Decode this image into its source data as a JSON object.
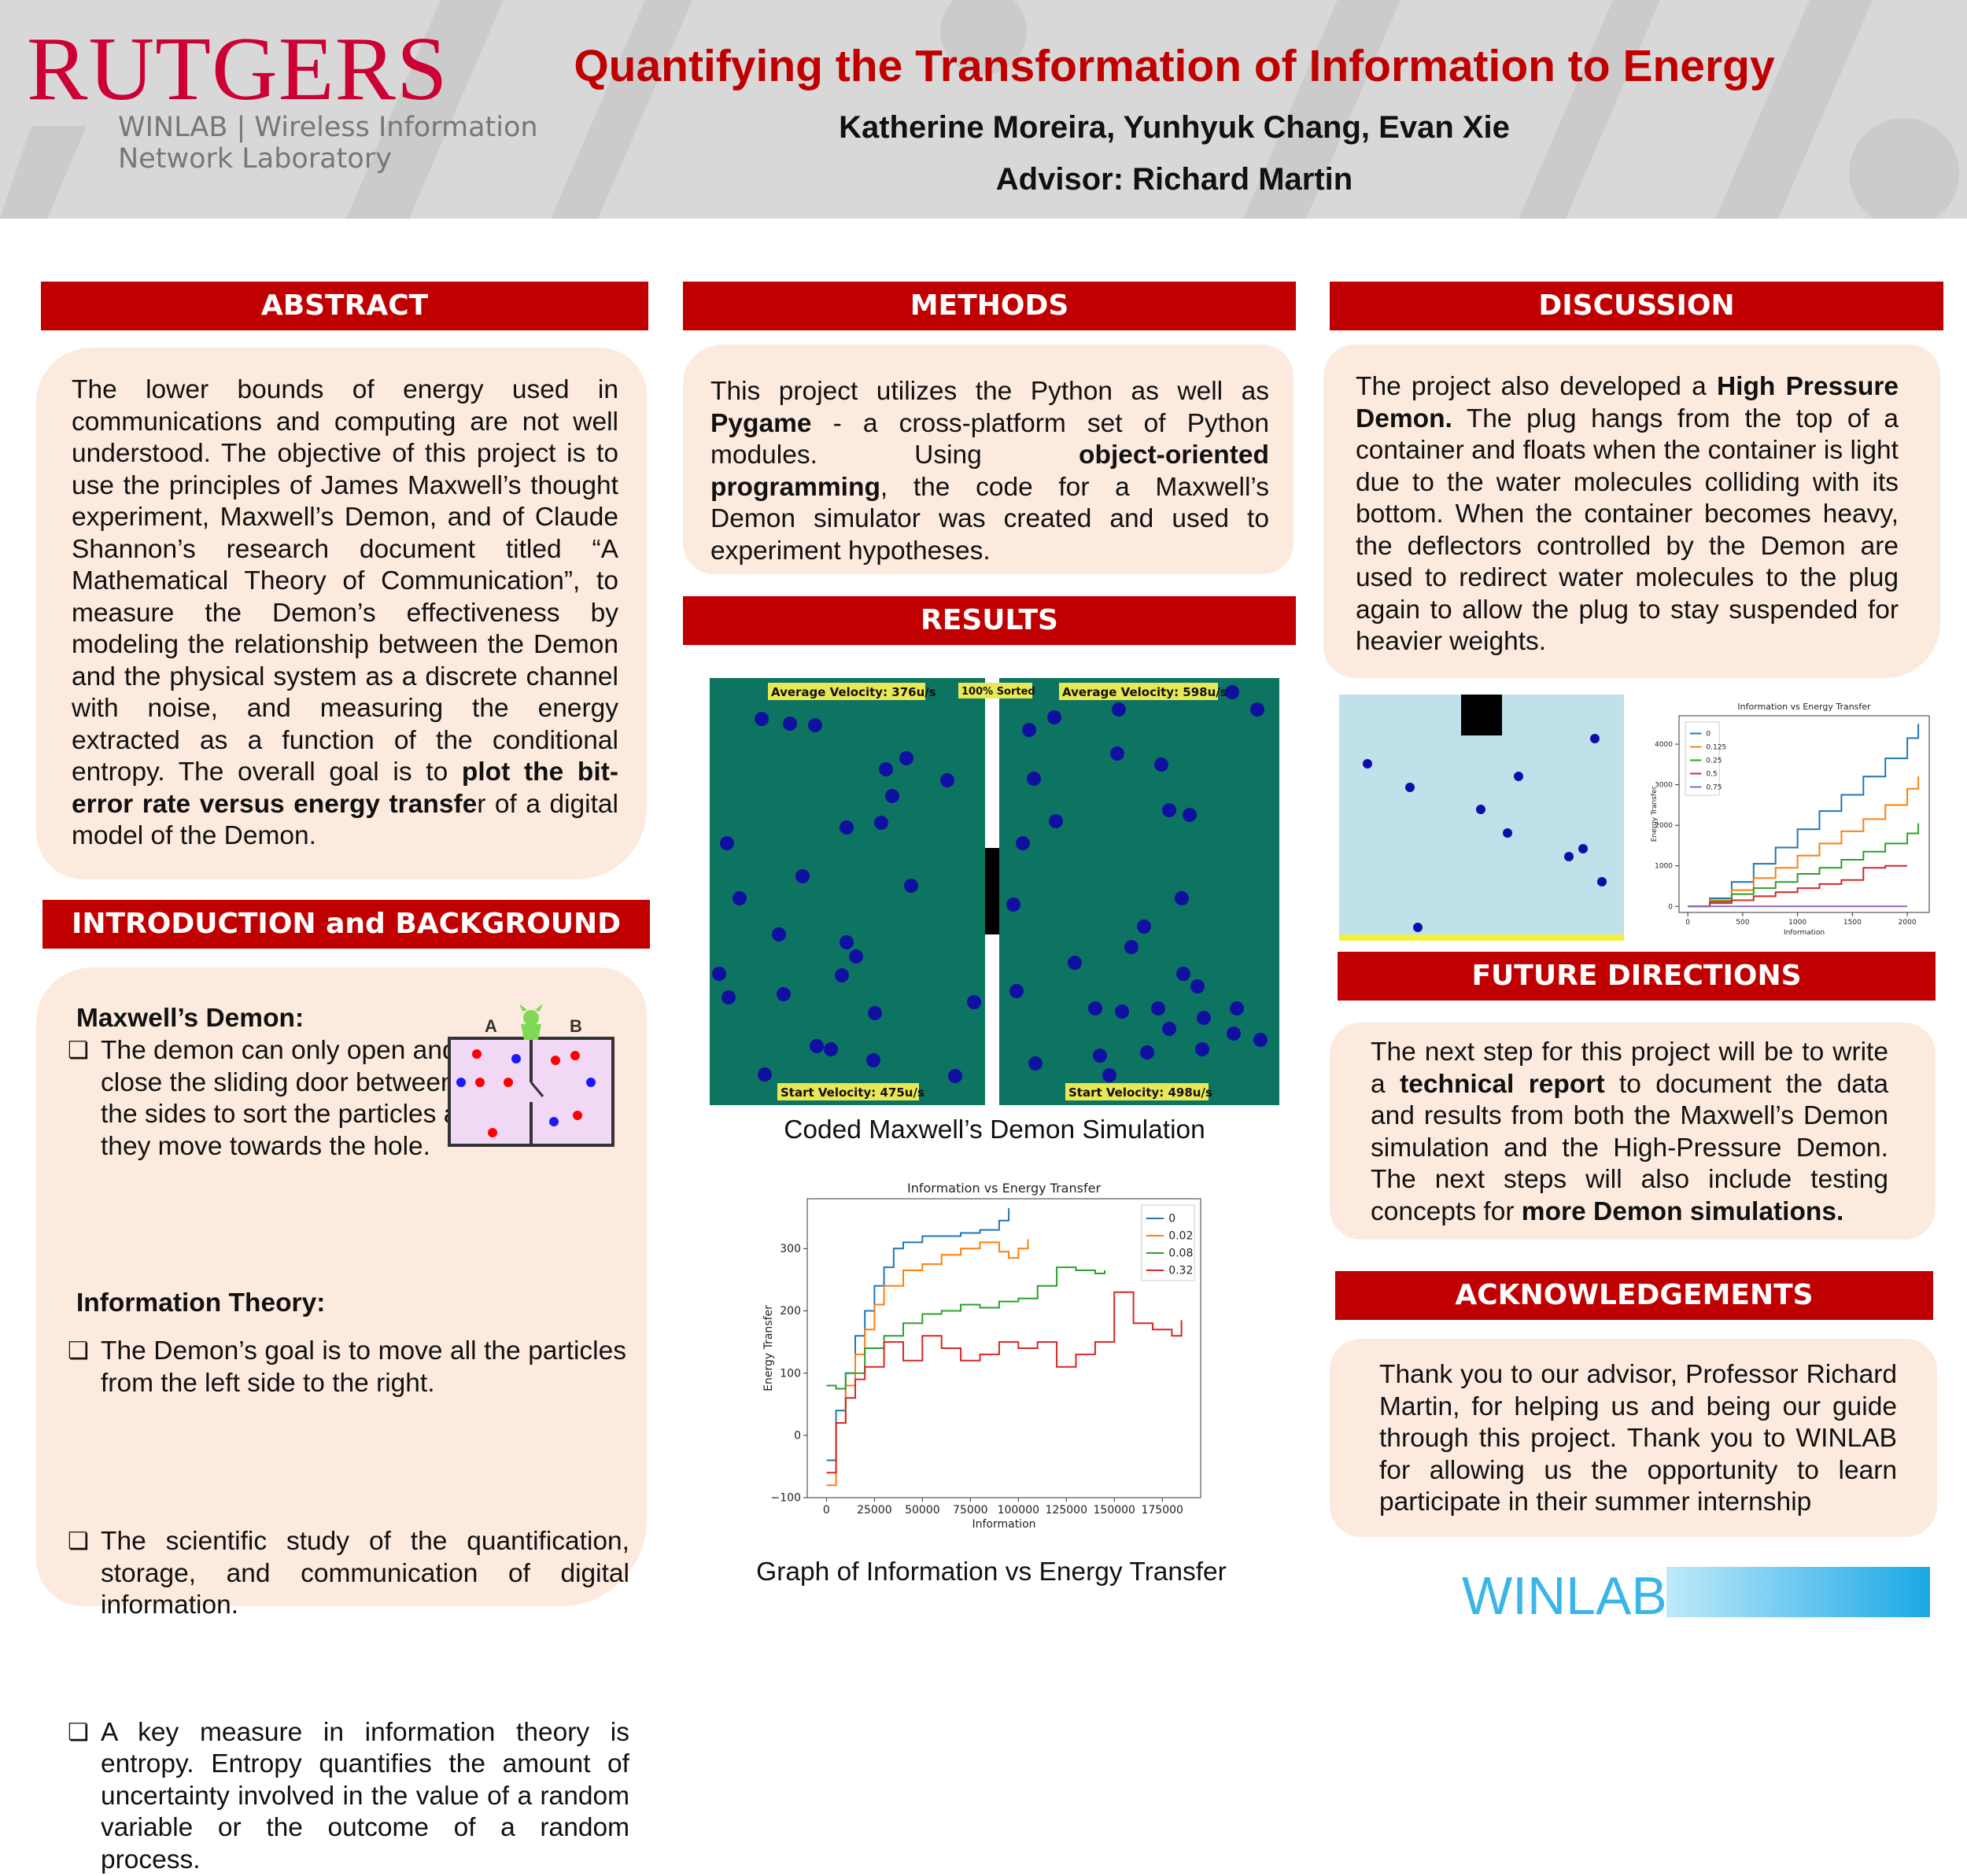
{
  "header": {
    "university": "RUTGERS",
    "lab_line1": "WINLAB | Wireless Information",
    "lab_line2": "Network Laboratory",
    "title": "Quantifying the Transformation of Information to Energy",
    "authors": "Katherine Moreira, Yunhyuk Chang, Evan Xie",
    "advisor": "Advisor: Richard Martin"
  },
  "colors": {
    "accent": "#c00000",
    "box": "#fdeade",
    "sim_bg": "#0e7462",
    "hp_bg": "#bfe1e9",
    "winlab": "#3bb5e8"
  },
  "abstract": {
    "heading": "ABSTRACT",
    "text_before": "The lower bounds of energy used in communications and computing are not well understood. The objective of this project is to use the principles of James Maxwell’s thought experiment, Maxwell’s Demon, and of Claude Shannon’s research document titled “A Mathematical Theory of Communication”, to measure the Demon’s effectiveness by modeling the relationship between the Demon and the physical system as a discrete channel with noise, and measuring the energy extracted as a function of the conditional entropy. The overall goal is to ",
    "text_bold": "plot the bit-error rate versus energy transfe",
    "text_after": "r of a digital model of the Demon."
  },
  "intro": {
    "heading": "INTRODUCTION and BACKGROUND",
    "sub1": "Maxwell’s Demon:",
    "bullet1": "The demon can only open and close the sliding door between the sides to sort the particles as they move towards the hole.",
    "bullet2": "The Demon’s goal is to move all the particles from the left side to the right.",
    "sub2": "Information Theory:",
    "bullet3": "The scientific study of the quantification, storage, and communication of digital information.",
    "bullet4": "A key measure in information theory is entropy. Entropy quantifies the amount of uncertainty involved in the value of a random variable or the outcome of a random process.",
    "bullet_marker": "❏",
    "diagram_a": "A",
    "diagram_b": "B"
  },
  "methods": {
    "heading": "METHODS",
    "t1": "This project utilizes the Python  as well as ",
    "b1": "Pygame",
    "t2": " - a cross-platform set of Python modules. Using ",
    "b2": "object-oriented programming",
    "t3": ", the code for a Maxwell’s Demon simulator was created and used to experiment hypotheses."
  },
  "results": {
    "heading": "RESULTS",
    "sim_avg_left": "Average Velocity: 376u/s",
    "sim_sorted": "100% Sorted",
    "sim_avg_right": "Average Velocity: 598u/s",
    "sim_start_left": "Start Velocity: 475u/s",
    "sim_start_right": "Start Velocity: 498u/s",
    "sim_caption": "Coded Maxwell’s Demon Simulation",
    "graph_caption": "Graph of Information vs Energy Transfer"
  },
  "discussion": {
    "heading": "DISCUSSION",
    "t1": "The project also developed a ",
    "b1": "High Pressure Demon.",
    "t2": " The plug hangs from the top of a container and floats when the container is light due to the water molecules colliding with its bottom. When the container becomes heavy, the deflectors controlled by the Demon are used to redirect water molecules to the plug again to allow the plug to stay suspended for heavier weights."
  },
  "future": {
    "heading": "FUTURE DIRECTIONS",
    "t1": "The next step for this project will be to write a ",
    "b1": "technical report",
    "t2": " to document the data and results from both the Maxwell’s Demon simulation and the High-Pressure Demon. The next steps will also include testing concepts for ",
    "b2": "more Demon simulations."
  },
  "ack": {
    "heading": "ACKNOWLEDGEMENTS",
    "text": "Thank you to our advisor, Professor Richard Martin, for helping us and being our guide through this project. Thank you to WINLAB for allowing us the opportunity to learn participate in their summer internship"
  },
  "footer_logo": "WINLAB",
  "chart_data": [
    {
      "type": "line",
      "title": "Information vs Energy Transfer",
      "xlabel": "Information",
      "ylabel": "Energy Transfer",
      "xlim": [
        -10000,
        195000
      ],
      "ylim": [
        -100,
        380
      ],
      "xticks": [
        0,
        25000,
        50000,
        75000,
        100000,
        125000,
        150000,
        175000
      ],
      "yticks": [
        -100,
        0,
        100,
        200,
        300
      ],
      "legend": "top-right",
      "series": [
        {
          "name": "0",
          "color": "#1f77b4",
          "x": [
            0,
            5000,
            10000,
            15000,
            20000,
            25000,
            30000,
            35000,
            40000,
            50000,
            60000,
            70000,
            80000,
            90000,
            95000
          ],
          "y": [
            -40,
            40,
            100,
            160,
            200,
            240,
            270,
            300,
            310,
            320,
            320,
            325,
            330,
            345,
            365
          ]
        },
        {
          "name": "0.02",
          "color": "#ff7f0e",
          "x": [
            0,
            5000,
            10000,
            15000,
            20000,
            25000,
            30000,
            40000,
            50000,
            60000,
            70000,
            80000,
            90000,
            95000,
            100000,
            105000
          ],
          "y": [
            -80,
            20,
            80,
            130,
            170,
            210,
            240,
            265,
            275,
            290,
            300,
            310,
            295,
            285,
            300,
            315
          ]
        },
        {
          "name": "0.08",
          "color": "#2ca02c",
          "x": [
            0,
            5000,
            10000,
            20000,
            30000,
            40000,
            50000,
            60000,
            70000,
            80000,
            90000,
            100000,
            110000,
            120000,
            130000,
            140000,
            145000
          ],
          "y": [
            80,
            75,
            100,
            140,
            160,
            180,
            195,
            200,
            210,
            205,
            215,
            220,
            240,
            270,
            265,
            260,
            265
          ]
        },
        {
          "name": "0.32",
          "color": "#d62728",
          "x": [
            0,
            5000,
            10000,
            15000,
            20000,
            30000,
            40000,
            50000,
            60000,
            70000,
            80000,
            90000,
            100000,
            110000,
            120000,
            130000,
            140000,
            150000,
            160000,
            170000,
            180000,
            185000
          ],
          "y": [
            -60,
            20,
            60,
            90,
            110,
            150,
            120,
            160,
            140,
            120,
            130,
            150,
            140,
            150,
            110,
            130,
            150,
            230,
            180,
            170,
            160,
            185
          ]
        }
      ]
    },
    {
      "type": "line",
      "title": "Information vs Energy Transfer",
      "xlabel": "Information",
      "ylabel": "Energy Transfer",
      "xlim": [
        -80,
        2200
      ],
      "ylim": [
        -150,
        4700
      ],
      "xticks": [
        0,
        500,
        1000,
        1500,
        2000
      ],
      "yticks": [
        0,
        1000,
        2000,
        3000,
        4000
      ],
      "legend": "top-left",
      "series": [
        {
          "name": "0",
          "color": "#1f77b4",
          "x": [
            0,
            200,
            400,
            600,
            800,
            1000,
            1200,
            1400,
            1600,
            1800,
            2000,
            2100
          ],
          "y": [
            0,
            200,
            600,
            1050,
            1450,
            1900,
            2350,
            2750,
            3200,
            3650,
            4150,
            4500
          ]
        },
        {
          "name": "0.125",
          "color": "#ff7f0e",
          "x": [
            0,
            200,
            400,
            600,
            800,
            1000,
            1200,
            1400,
            1600,
            1800,
            2000,
            2100
          ],
          "y": [
            0,
            150,
            400,
            700,
            950,
            1250,
            1550,
            1850,
            2150,
            2500,
            2900,
            3200
          ]
        },
        {
          "name": "0.25",
          "color": "#2ca02c",
          "x": [
            0,
            200,
            400,
            600,
            800,
            1000,
            1200,
            1400,
            1600,
            1800,
            2000,
            2100
          ],
          "y": [
            0,
            120,
            300,
            450,
            600,
            800,
            950,
            1150,
            1350,
            1550,
            1800,
            2050
          ]
        },
        {
          "name": "0.5",
          "color": "#d62728",
          "x": [
            0,
            200,
            400,
            600,
            800,
            1000,
            1200,
            1400,
            1600,
            1800,
            2000
          ],
          "y": [
            0,
            80,
            150,
            250,
            350,
            450,
            550,
            650,
            950,
            1000,
            1000
          ]
        },
        {
          "name": "0.75",
          "color": "#9467bd",
          "x": [
            0,
            2000
          ],
          "y": [
            0,
            0
          ]
        }
      ]
    }
  ]
}
